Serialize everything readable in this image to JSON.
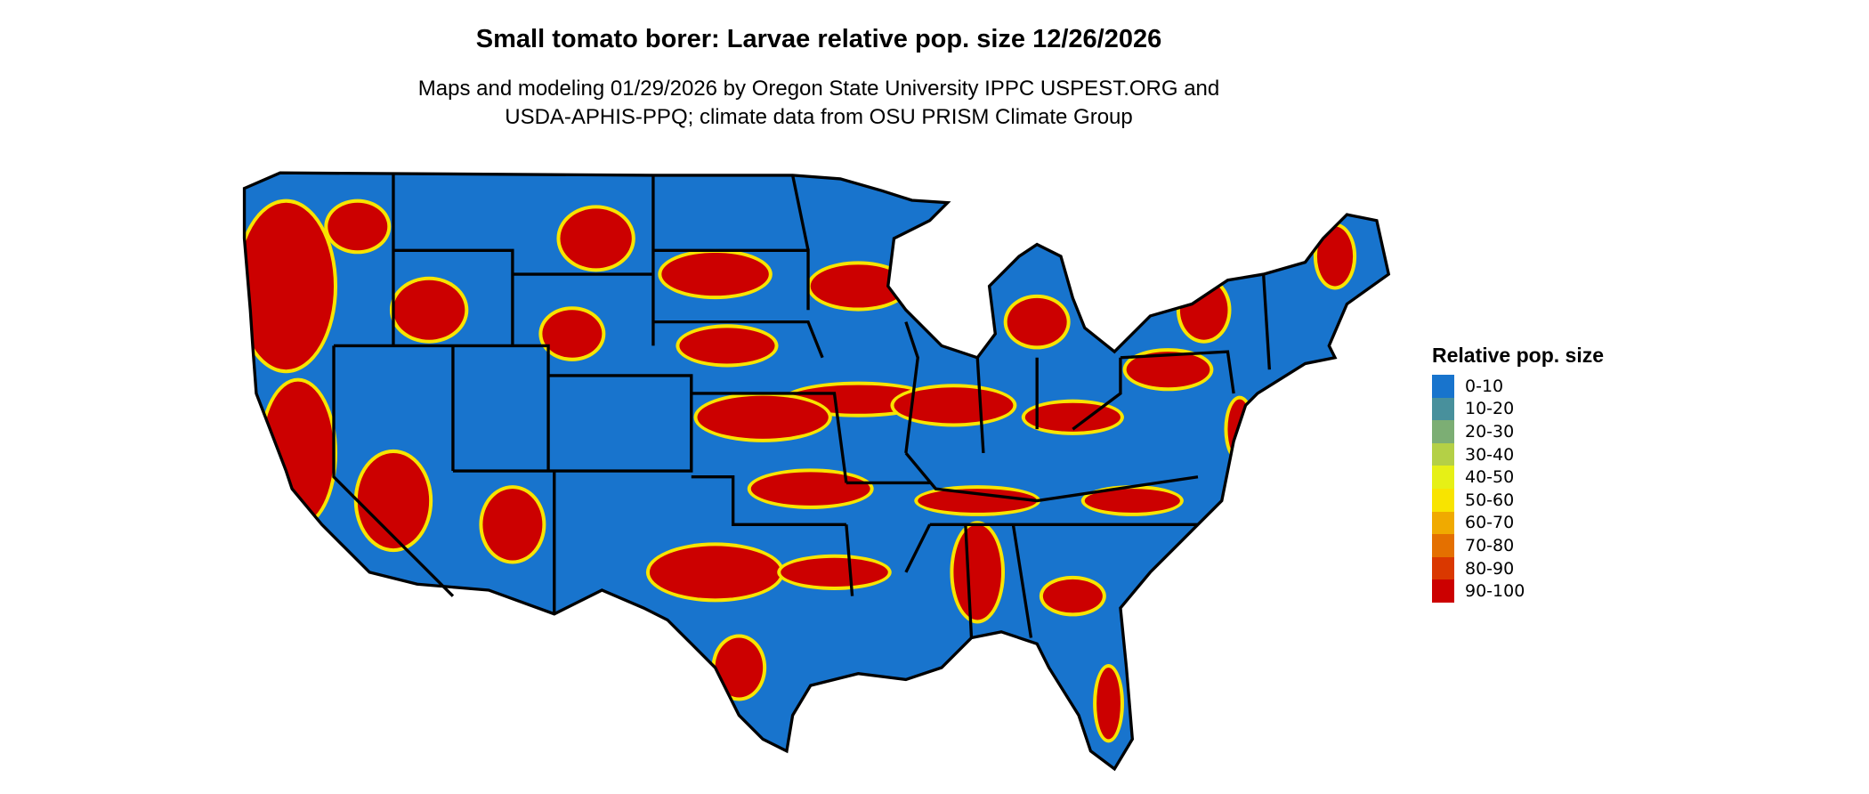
{
  "title": "Small tomato borer: Larvae relative pop. size 12/26/2026",
  "subtitle_line1": "Maps and modeling 01/29/2026 by Oregon State University IPPC USPEST.ORG and",
  "subtitle_line2": "USDA-APHIS-PPQ; climate data from OSU PRISM Climate Group",
  "legend": {
    "title": "Relative pop. size",
    "items": [
      {
        "label": "0-10",
        "color": "#1874CD"
      },
      {
        "label": "10-20",
        "color": "#48909C"
      },
      {
        "label": "20-30",
        "color": "#7CAE74"
      },
      {
        "label": "30-40",
        "color": "#B4D046"
      },
      {
        "label": "40-50",
        "color": "#E6F016"
      },
      {
        "label": "50-60",
        "color": "#F8E400"
      },
      {
        "label": "60-70",
        "color": "#F0AA00"
      },
      {
        "label": "70-80",
        "color": "#E47000"
      },
      {
        "label": "80-90",
        "color": "#DA3800"
      },
      {
        "label": "90-100",
        "color": "#CC0000"
      }
    ]
  },
  "map": {
    "region": "contiguous United States",
    "base_color": "#1874CD",
    "hot_color": "#CC0000",
    "border_color": "#000000"
  }
}
